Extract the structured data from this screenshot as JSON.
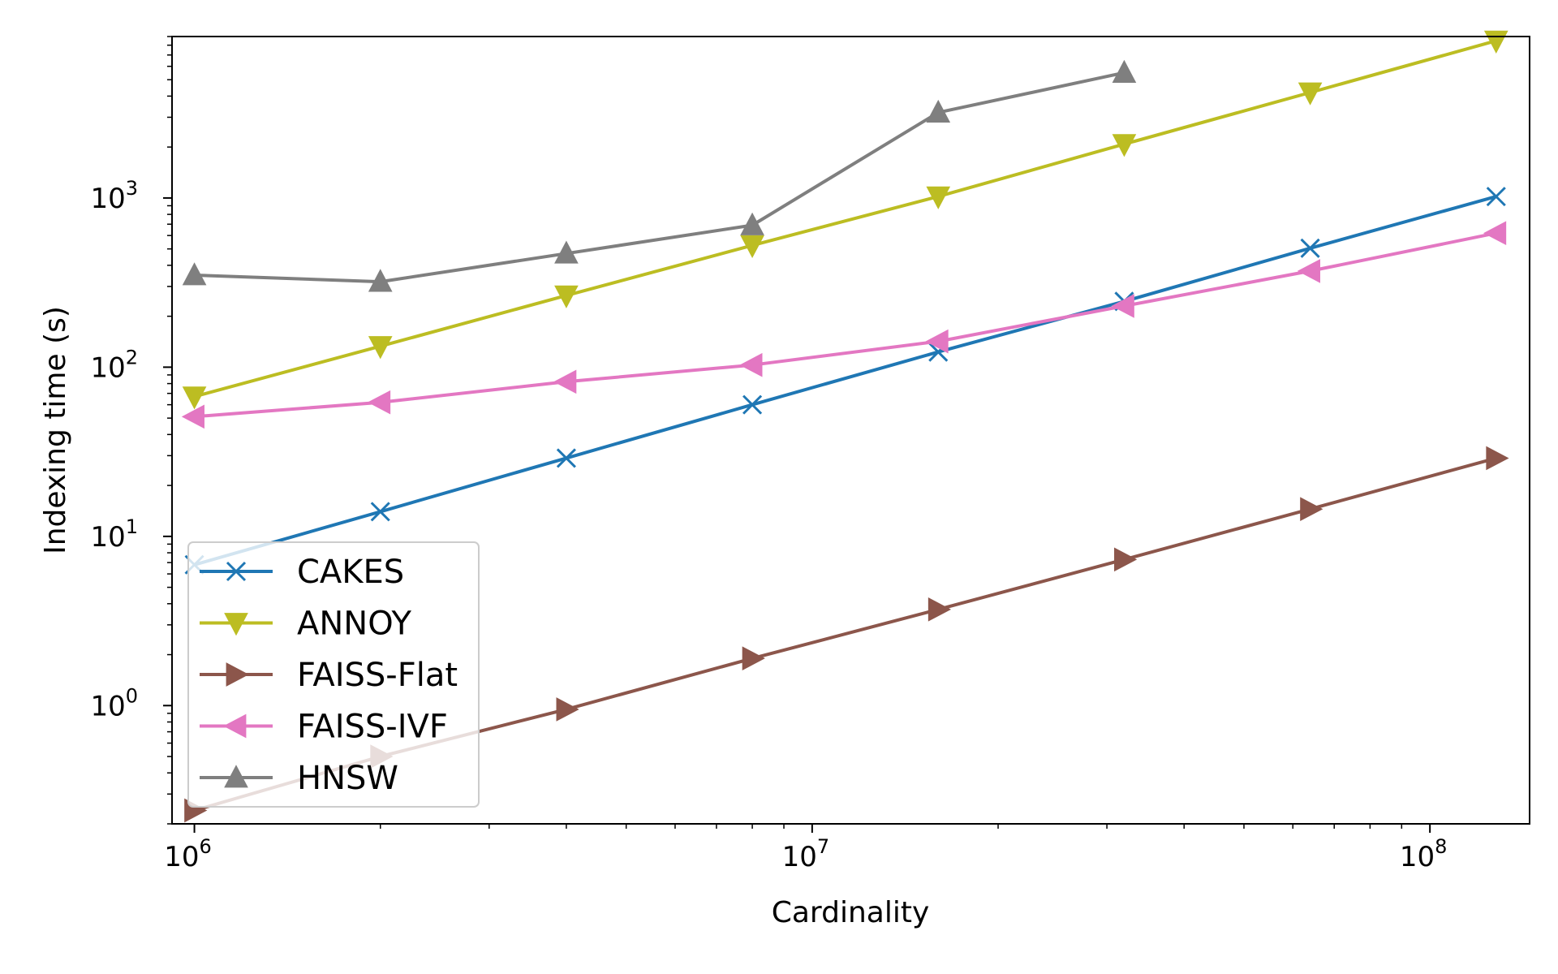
{
  "chart_data": {
    "type": "line",
    "title": "",
    "xlabel": "Cardinality",
    "ylabel": "Indexing time (s)",
    "xscale": "log",
    "yscale": "log",
    "xlim": [
      920000,
      145000000
    ],
    "ylim": [
      0.2,
      9000
    ],
    "grid": false,
    "legend_position": "lower-left",
    "x_ticks": [
      {
        "value": 1000000,
        "base": "10",
        "exp": "6"
      },
      {
        "value": 10000000,
        "base": "10",
        "exp": "7"
      },
      {
        "value": 100000000,
        "base": "10",
        "exp": "8"
      }
    ],
    "y_ticks": [
      {
        "value": 1,
        "base": "10",
        "exp": "0"
      },
      {
        "value": 10,
        "base": "10",
        "exp": "1"
      },
      {
        "value": 100,
        "base": "10",
        "exp": "2"
      },
      {
        "value": 1000,
        "base": "10",
        "exp": "3"
      }
    ],
    "series": [
      {
        "name": "CAKES",
        "color": "#1f77b4",
        "marker": "x",
        "x": [
          1000000,
          2000000,
          4000000,
          8000000,
          16000000,
          32000000,
          64000000,
          128000000
        ],
        "y": [
          6.8,
          14,
          29,
          60,
          123,
          245,
          505,
          1020
        ]
      },
      {
        "name": "ANNOY",
        "color": "#bcbd22",
        "marker": "triangle-down",
        "x": [
          1000000,
          2000000,
          4000000,
          8000000,
          16000000,
          32000000,
          64000000,
          128000000
        ],
        "y": [
          67,
          133,
          265,
          525,
          1020,
          2080,
          4200,
          8500
        ]
      },
      {
        "name": "FAISS-Flat",
        "color": "#8c564b",
        "marker": "triangle-right",
        "x": [
          1000000,
          2000000,
          4000000,
          8000000,
          16000000,
          32000000,
          64000000,
          128000000
        ],
        "y": [
          0.24,
          0.5,
          0.95,
          1.9,
          3.7,
          7.3,
          14.5,
          29
        ]
      },
      {
        "name": "FAISS-IVF",
        "color": "#e377c2",
        "marker": "triangle-left",
        "x": [
          1000000,
          2000000,
          4000000,
          8000000,
          16000000,
          32000000,
          64000000,
          128000000
        ],
        "y": [
          51,
          62,
          82,
          103,
          142,
          230,
          370,
          620
        ]
      },
      {
        "name": "HNSW",
        "color": "#7f7f7f",
        "marker": "triangle-up",
        "x": [
          1000000,
          2000000,
          4000000,
          8000000,
          16000000,
          32000000
        ],
        "y": [
          350,
          320,
          470,
          690,
          3200,
          5500
        ]
      }
    ]
  }
}
